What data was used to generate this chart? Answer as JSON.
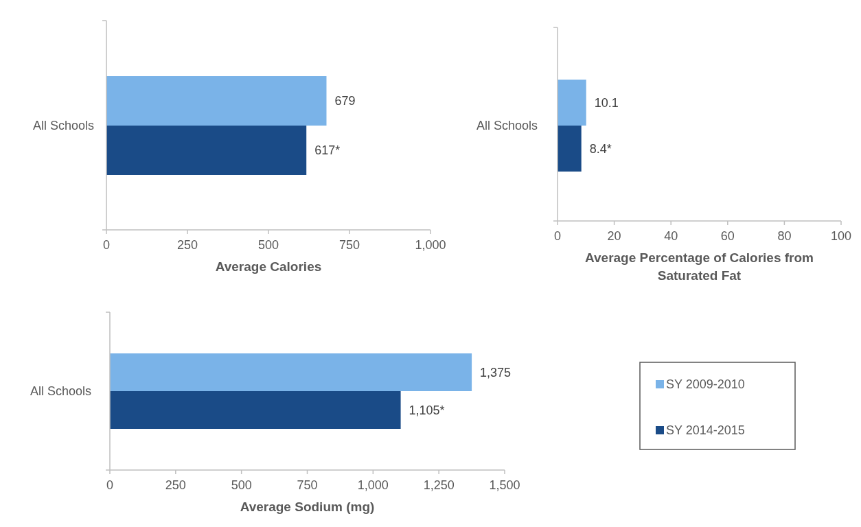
{
  "chart_data": [
    {
      "type": "bar",
      "orientation": "horizontal",
      "categories": [
        "All Schools"
      ],
      "xlabel": "Average Calories",
      "xlim": [
        0,
        1000
      ],
      "xticks": [
        0,
        250,
        500,
        750,
        {
          "value": 1000,
          "label": "1,000"
        }
      ],
      "legend": false,
      "series": [
        {
          "color": "#7ab3e8",
          "values": [
            679
          ],
          "value_labels": [
            "679"
          ]
        },
        {
          "color": "#1a4b87",
          "values": [
            617
          ],
          "value_labels": [
            "617*"
          ]
        }
      ]
    },
    {
      "type": "bar",
      "orientation": "horizontal",
      "categories": [
        "All Schools"
      ],
      "xlabel": "Average Percentage of Calories from Saturated Fat",
      "xlim": [
        0,
        100
      ],
      "xticks": [
        0,
        20,
        40,
        60,
        80,
        100
      ],
      "legend": false,
      "series": [
        {
          "color": "#7ab3e8",
          "values": [
            10.1
          ],
          "value_labels": [
            "10.1"
          ]
        },
        {
          "color": "#1a4b87",
          "values": [
            8.4
          ],
          "value_labels": [
            "8.4*"
          ]
        }
      ]
    },
    {
      "type": "bar",
      "orientation": "horizontal",
      "categories": [
        "All Schools"
      ],
      "xlabel": "Average Sodium (mg)",
      "xlim": [
        0,
        1500
      ],
      "xticks": [
        0,
        250,
        500,
        750,
        {
          "value": 1000,
          "label": "1,000"
        },
        {
          "value": 1250,
          "label": "1,250"
        },
        {
          "value": 1500,
          "label": "1,500"
        }
      ],
      "legend": "right",
      "series": [
        {
          "name": "SY 2009-2010",
          "color": "#7ab3e8",
          "values": [
            1375
          ],
          "value_labels": [
            "1,375"
          ]
        },
        {
          "name": "SY 2014-2015",
          "color": "#1a4b87",
          "values": [
            1105
          ],
          "value_labels": [
            "1,105*"
          ]
        }
      ]
    }
  ]
}
